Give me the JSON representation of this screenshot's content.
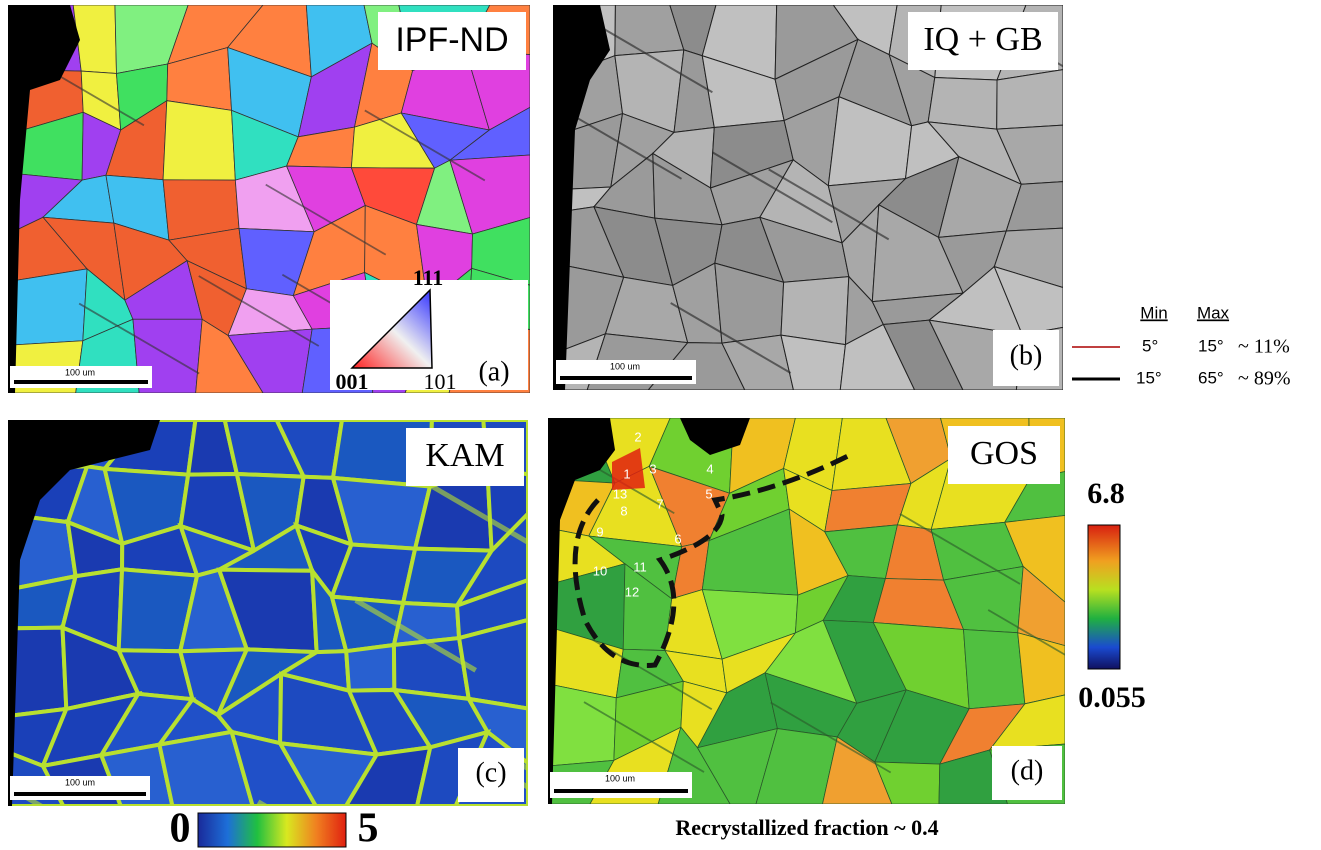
{
  "panels": [
    {
      "tag": "IPF-ND",
      "label": "(a)",
      "scale_bar": "100 um",
      "legend": {
        "top": "111",
        "left": "001",
        "right": "101"
      }
    },
    {
      "tag": "IQ + GB",
      "label": "(b)",
      "scale_bar": "100 um"
    },
    {
      "tag": "KAM",
      "label": "(c)",
      "scale_bar": "100 um"
    },
    {
      "tag": "GOS",
      "label": "(d)",
      "scale_bar": "100 um",
      "grain_labels": [
        "1",
        "2",
        "3",
        "4",
        "5",
        "6",
        "7",
        "8",
        "9",
        "10",
        "11",
        "12",
        "13"
      ]
    }
  ],
  "boundary_legend": {
    "header": [
      "Min",
      "Max"
    ],
    "rows": [
      [
        "5°",
        "15°",
        "~ 11%"
      ],
      [
        "15°",
        "65°",
        "~ 89%"
      ]
    ]
  },
  "kam_scale": {
    "min": "0",
    "max": "5"
  },
  "gos_scale": {
    "max": "6.8",
    "min": "0.055"
  },
  "caption": "Recrystallized fraction ~ 0.4"
}
